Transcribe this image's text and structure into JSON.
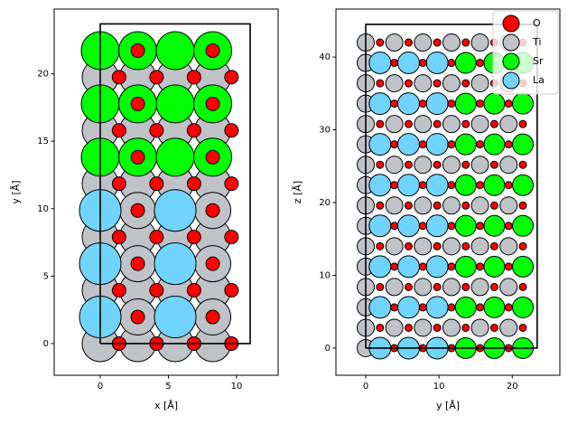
{
  "chart_data": [
    {
      "type": "scatter",
      "xlabel": "x [Å]",
      "ylabel": "y [Å]",
      "xlim": [
        -3.38,
        13.05
      ],
      "ylim": [
        -2.35,
        24.8
      ],
      "xticks": [
        0,
        5,
        10
      ],
      "yticks": [
        0,
        5,
        10,
        15,
        20
      ],
      "cell_outline": {
        "x": [
          0,
          11,
          11,
          0,
          0
        ],
        "y": [
          0,
          0,
          23.7,
          23.7,
          0
        ]
      },
      "series": [
        {
          "name": "O",
          "color": "#ff0000",
          "x": [
            1.38,
            4.13,
            6.88,
            9.63,
            1.38,
            4.13,
            6.88,
            9.63,
            1.38,
            4.13,
            6.88,
            9.63,
            1.38,
            4.13,
            6.88,
            9.63,
            1.38,
            4.13,
            6.88,
            9.63,
            1.38,
            4.13,
            6.88,
            9.63,
            2.75,
            8.25,
            2.75,
            8.25,
            2.75,
            8.25,
            2.75,
            8.25,
            2.75,
            8.25,
            2.75,
            8.25
          ],
          "y": [
            0,
            0,
            0,
            0,
            3.95,
            3.95,
            3.95,
            3.95,
            7.9,
            7.9,
            7.9,
            7.9,
            11.85,
            11.85,
            11.85,
            11.85,
            15.8,
            15.8,
            15.8,
            15.8,
            19.75,
            19.75,
            19.75,
            19.75,
            1.97,
            1.97,
            5.92,
            5.92,
            9.87,
            9.87,
            13.82,
            13.82,
            17.77,
            17.77,
            21.72,
            21.72
          ]
        },
        {
          "name": "Ti",
          "color": "#bfc2c7",
          "x": [
            0,
            2.75,
            5.5,
            8.25,
            0,
            2.75,
            5.5,
            8.25,
            0,
            2.75,
            5.5,
            8.25,
            0,
            2.75,
            5.5,
            8.25,
            0,
            2.75,
            5.5,
            8.25,
            0,
            2.75,
            5.5,
            8.25,
            2.75,
            8.25,
            2.75,
            8.25,
            2.75,
            8.25
          ],
          "y": [
            0,
            0,
            0,
            0,
            3.95,
            3.95,
            3.95,
            3.95,
            7.9,
            7.9,
            7.9,
            7.9,
            11.85,
            11.85,
            11.85,
            11.85,
            15.8,
            15.8,
            15.8,
            15.8,
            19.75,
            19.75,
            19.75,
            19.75,
            1.97,
            1.97,
            5.92,
            5.92,
            9.87,
            9.87
          ]
        },
        {
          "name": "Sr",
          "color": "#00ff00",
          "x": [
            0,
            2.75,
            5.5,
            8.25,
            0,
            2.75,
            5.5,
            8.25,
            0,
            2.75,
            5.5,
            8.25
          ],
          "y": [
            13.82,
            13.82,
            13.82,
            13.82,
            17.77,
            17.77,
            17.77,
            17.77,
            21.72,
            21.72,
            21.72,
            21.72
          ]
        },
        {
          "name": "La",
          "color": "#70d4ff",
          "x": [
            0,
            5.5,
            0,
            5.5,
            0,
            5.5
          ],
          "y": [
            1.97,
            1.97,
            5.92,
            5.92,
            9.87,
            9.87
          ]
        }
      ]
    },
    {
      "type": "scatter",
      "xlabel": "y [Å]",
      "ylabel": "z [Å]",
      "legend": "upper right",
      "xlim": [
        -4.07,
        26.5
      ],
      "ylim": [
        -3.73,
        46.6
      ],
      "xticks": [
        0,
        10,
        20
      ],
      "yticks": [
        0,
        10,
        20,
        30,
        40
      ],
      "cell_outline": {
        "x": [
          0,
          23.4,
          23.4,
          0,
          0
        ],
        "y": [
          0,
          0,
          44.5,
          44.5,
          0
        ]
      },
      "series": [
        {
          "name": "O",
          "color": "#ff0000",
          "x": [
            3.9,
            7.8,
            11.7,
            15.6,
            19.5,
            1.95,
            5.85,
            9.75,
            13.65,
            17.55,
            21.45,
            3.9,
            7.8,
            11.7,
            15.6,
            19.5,
            1.95,
            5.85,
            9.75,
            13.65,
            17.55,
            21.45,
            3.9,
            7.8,
            11.7,
            15.6,
            19.5,
            1.95,
            5.85,
            9.75,
            13.65,
            17.55,
            21.45,
            3.9,
            7.8,
            11.7,
            15.6,
            19.5,
            1.95,
            5.85,
            9.75,
            13.65,
            17.55,
            21.45,
            3.9,
            7.8,
            11.7,
            15.6,
            19.5,
            1.95,
            5.85,
            9.75,
            13.65,
            17.55,
            21.45,
            3.9,
            7.8,
            11.7,
            15.6,
            19.5,
            1.95,
            5.85,
            9.75,
            13.65,
            17.55,
            21.45,
            3.9,
            7.8,
            11.7,
            15.6,
            19.5,
            1.95,
            5.85,
            9.75,
            13.65,
            17.55,
            21.45,
            3.9,
            7.8,
            11.7,
            15.6,
            19.5,
            1.95,
            5.85,
            9.75,
            13.65,
            17.55,
            21.45
          ],
          "y": [
            0,
            0,
            0,
            0,
            0,
            2.8,
            2.8,
            2.8,
            2.8,
            2.8,
            2.8,
            5.6,
            5.6,
            5.6,
            5.6,
            5.6,
            8.4,
            8.4,
            8.4,
            8.4,
            8.4,
            8.4,
            11.2,
            11.2,
            11.2,
            11.2,
            11.2,
            14,
            14,
            14,
            14,
            14,
            14,
            16.8,
            16.8,
            16.8,
            16.8,
            16.8,
            19.6,
            19.6,
            19.6,
            19.6,
            19.6,
            19.6,
            22.4,
            22.4,
            22.4,
            22.4,
            22.4,
            25.2,
            25.2,
            25.2,
            25.2,
            25.2,
            25.2,
            28,
            28,
            28,
            28,
            28,
            30.8,
            30.8,
            30.8,
            30.8,
            30.8,
            30.8,
            33.6,
            33.6,
            33.6,
            33.6,
            33.6,
            36.4,
            36.4,
            36.4,
            36.4,
            36.4,
            36.4,
            39.2,
            39.2,
            39.2,
            39.2,
            39.2,
            42,
            42,
            42,
            42,
            42,
            42
          ]
        },
        {
          "name": "Ti",
          "color": "#bfc2c7",
          "x": [
            0,
            0,
            3.9,
            7.8,
            11.7,
            15.6,
            19.5,
            0,
            0,
            3.9,
            7.8,
            11.7,
            15.6,
            19.5,
            0,
            0,
            3.9,
            7.8,
            11.7,
            15.6,
            19.5,
            0,
            0,
            3.9,
            7.8,
            11.7,
            15.6,
            19.5,
            0,
            0,
            3.9,
            7.8,
            11.7,
            15.6,
            19.5,
            0,
            0,
            3.9,
            7.8,
            11.7,
            15.6,
            19.5,
            0,
            0,
            3.9,
            7.8,
            11.7,
            15.6,
            19.5,
            0,
            0,
            3.9,
            7.8,
            11.7,
            15.6,
            19.5
          ],
          "y": [
            0,
            2.8,
            2.8,
            2.8,
            2.8,
            2.8,
            2.8,
            5.6,
            8.4,
            8.4,
            8.4,
            8.4,
            8.4,
            8.4,
            11.2,
            14,
            14,
            14,
            14,
            14,
            14,
            16.8,
            19.6,
            19.6,
            19.6,
            19.6,
            19.6,
            19.6,
            22.4,
            25.2,
            25.2,
            25.2,
            25.2,
            25.2,
            25.2,
            28,
            30.8,
            30.8,
            30.8,
            30.8,
            30.8,
            30.8,
            33.6,
            36.4,
            36.4,
            36.4,
            36.4,
            36.4,
            36.4,
            39.2,
            42,
            42,
            42,
            42,
            42,
            42
          ]
        },
        {
          "name": "Sr",
          "color": "#00ff00",
          "x": [
            13.65,
            17.55,
            21.45,
            13.65,
            17.55,
            21.45,
            13.65,
            17.55,
            21.45,
            13.65,
            17.55,
            21.45,
            13.65,
            17.55,
            21.45,
            13.65,
            17.55,
            21.45,
            13.65,
            17.55,
            21.45,
            13.65,
            17.55,
            21.45
          ],
          "y": [
            0,
            0,
            0,
            5.6,
            5.6,
            5.6,
            11.2,
            11.2,
            11.2,
            16.8,
            16.8,
            16.8,
            22.4,
            22.4,
            22.4,
            28,
            28,
            28,
            33.6,
            33.6,
            33.6,
            39.2,
            39.2,
            39.2
          ]
        },
        {
          "name": "La",
          "color": "#70d4ff",
          "x": [
            1.95,
            5.85,
            9.75,
            1.95,
            5.85,
            9.75,
            1.95,
            5.85,
            9.75,
            1.95,
            5.85,
            9.75,
            1.95,
            5.85,
            9.75,
            1.95,
            5.85,
            9.75,
            1.95,
            5.85,
            9.75,
            1.95,
            5.85,
            9.75
          ],
          "y": [
            0,
            0,
            0,
            5.6,
            5.6,
            5.6,
            11.2,
            11.2,
            11.2,
            16.8,
            16.8,
            16.8,
            22.4,
            22.4,
            22.4,
            28,
            28,
            28,
            33.6,
            33.6,
            33.6,
            39.2,
            39.2,
            39.2
          ]
        }
      ]
    }
  ]
}
